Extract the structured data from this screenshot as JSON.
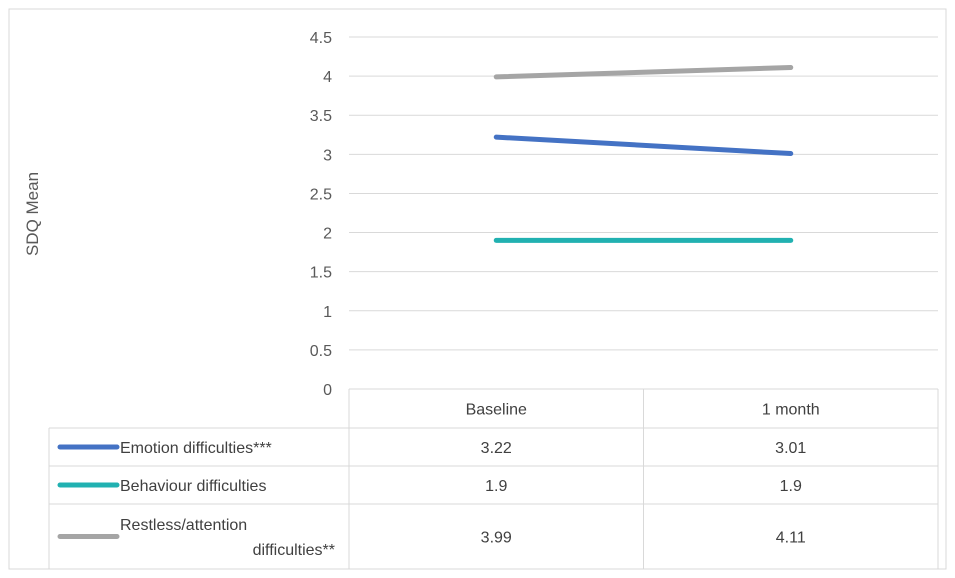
{
  "chart_data": {
    "type": "line",
    "ylabel": "SDQ Mean",
    "xlabel": "",
    "categories": [
      "Baseline",
      "1 month"
    ],
    "ylim": [
      0,
      4.5
    ],
    "y_ticks": [
      "0",
      "0.5",
      "1",
      "1.5",
      "2",
      "2.5",
      "3",
      "3.5",
      "4",
      "4.5"
    ],
    "grid": true,
    "legend": "data-table-below",
    "series": [
      {
        "name": "Emotion difficulties***",
        "values": [
          3.22,
          3.01
        ],
        "labels": [
          "3.22",
          "3.01"
        ],
        "color": "#4472C4"
      },
      {
        "name": "Behaviour difficulties",
        "values": [
          1.9,
          1.9
        ],
        "labels": [
          "1.9",
          "1.9"
        ],
        "color": "#21B1B1"
      },
      {
        "name_lines": [
          "Restless/attention",
          "difficulties**"
        ],
        "name": "Restless/attention difficulties**",
        "values": [
          3.99,
          4.11
        ],
        "labels": [
          "3.99",
          "4.11"
        ],
        "color": "#A5A5A5"
      }
    ]
  }
}
